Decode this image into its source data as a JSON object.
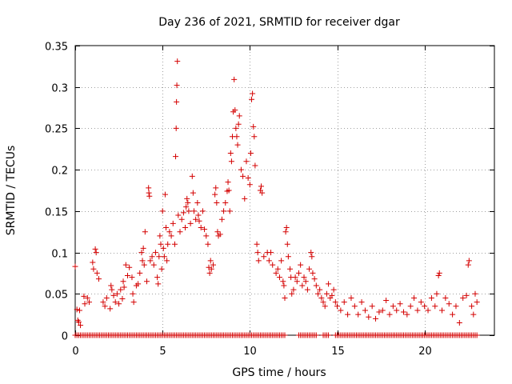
{
  "chart_data": {
    "type": "scatter",
    "title": "Day 236 of 2021, SRMTID for receiver dgar",
    "xlabel": "GPS time / hours",
    "ylabel": "SRMTID / TECUs",
    "xlim": [
      0,
      24
    ],
    "ylim": [
      0,
      0.35
    ],
    "x_ticks": [
      0,
      5,
      10,
      15,
      20
    ],
    "x_tick_labels": [
      "0",
      "5",
      "10",
      "15",
      "20"
    ],
    "y_ticks": [
      0,
      0.05,
      0.1,
      0.15,
      0.2,
      0.25,
      0.3,
      0.35
    ],
    "y_tick_labels": [
      "0",
      "0.05",
      "0.1",
      "0.15",
      "0.2",
      "0.25",
      "0.3",
      "0.35"
    ],
    "grid": true,
    "marker": "+",
    "series": [
      {
        "name": "SRMTID",
        "color": "#d40000",
        "points": [
          [
            0.0,
            0.083
          ],
          [
            0.1,
            0.031
          ],
          [
            0.15,
            0.018
          ],
          [
            0.2,
            0.016
          ],
          [
            0.25,
            0.03
          ],
          [
            0.3,
            0.012
          ],
          [
            0.5,
            0.047
          ],
          [
            0.55,
            0.038
          ],
          [
            0.7,
            0.045
          ],
          [
            0.8,
            0.04
          ],
          [
            1.0,
            0.088
          ],
          [
            1.05,
            0.08
          ],
          [
            1.15,
            0.104
          ],
          [
            1.2,
            0.1
          ],
          [
            1.25,
            0.075
          ],
          [
            1.35,
            0.068
          ],
          [
            1.6,
            0.04
          ],
          [
            1.7,
            0.035
          ],
          [
            1.8,
            0.045
          ],
          [
            2.0,
            0.032
          ],
          [
            2.05,
            0.06
          ],
          [
            2.1,
            0.055
          ],
          [
            2.2,
            0.048
          ],
          [
            2.3,
            0.04
          ],
          [
            2.4,
            0.05
          ],
          [
            2.5,
            0.038
          ],
          [
            2.6,
            0.055
          ],
          [
            2.7,
            0.044
          ],
          [
            2.75,
            0.065
          ],
          [
            2.8,
            0.058
          ],
          [
            2.9,
            0.085
          ],
          [
            3.0,
            0.072
          ],
          [
            3.1,
            0.082
          ],
          [
            3.25,
            0.07
          ],
          [
            3.3,
            0.05
          ],
          [
            3.35,
            0.04
          ],
          [
            3.5,
            0.06
          ],
          [
            3.6,
            0.062
          ],
          [
            3.7,
            0.075
          ],
          [
            3.8,
            0.1
          ],
          [
            3.85,
            0.09
          ],
          [
            3.9,
            0.105
          ],
          [
            3.95,
            0.085
          ],
          [
            4.0,
            0.125
          ],
          [
            4.1,
            0.065
          ],
          [
            4.2,
            0.178
          ],
          [
            4.22,
            0.172
          ],
          [
            4.25,
            0.168
          ],
          [
            4.3,
            0.09
          ],
          [
            4.4,
            0.095
          ],
          [
            4.5,
            0.085
          ],
          [
            4.6,
            0.1
          ],
          [
            4.7,
            0.07
          ],
          [
            4.75,
            0.062
          ],
          [
            4.8,
            0.095
          ],
          [
            4.85,
            0.12
          ],
          [
            4.9,
            0.11
          ],
          [
            4.95,
            0.08
          ],
          [
            5.0,
            0.15
          ],
          [
            5.05,
            0.105
          ],
          [
            5.1,
            0.095
          ],
          [
            5.15,
            0.17
          ],
          [
            5.2,
            0.13
          ],
          [
            5.25,
            0.09
          ],
          [
            5.3,
            0.11
          ],
          [
            5.4,
            0.125
          ],
          [
            5.5,
            0.12
          ],
          [
            5.6,
            0.135
          ],
          [
            5.7,
            0.11
          ],
          [
            5.75,
            0.216
          ],
          [
            5.78,
            0.25
          ],
          [
            5.8,
            0.282
          ],
          [
            5.82,
            0.302
          ],
          [
            5.85,
            0.331
          ],
          [
            5.9,
            0.145
          ],
          [
            6.0,
            0.125
          ],
          [
            6.1,
            0.14
          ],
          [
            6.2,
            0.148
          ],
          [
            6.3,
            0.13
          ],
          [
            6.35,
            0.155
          ],
          [
            6.4,
            0.165
          ],
          [
            6.45,
            0.16
          ],
          [
            6.5,
            0.15
          ],
          [
            6.6,
            0.135
          ],
          [
            6.7,
            0.192
          ],
          [
            6.75,
            0.172
          ],
          [
            6.8,
            0.15
          ],
          [
            6.9,
            0.14
          ],
          [
            7.0,
            0.16
          ],
          [
            7.05,
            0.145
          ],
          [
            7.1,
            0.138
          ],
          [
            7.2,
            0.13
          ],
          [
            7.3,
            0.15
          ],
          [
            7.4,
            0.128
          ],
          [
            7.5,
            0.12
          ],
          [
            7.6,
            0.11
          ],
          [
            7.65,
            0.082
          ],
          [
            7.7,
            0.075
          ],
          [
            7.75,
            0.09
          ],
          [
            7.8,
            0.08
          ],
          [
            7.9,
            0.085
          ],
          [
            8.0,
            0.17
          ],
          [
            8.05,
            0.178
          ],
          [
            8.1,
            0.16
          ],
          [
            8.15,
            0.125
          ],
          [
            8.2,
            0.12
          ],
          [
            8.3,
            0.122
          ],
          [
            8.4,
            0.14
          ],
          [
            8.5,
            0.15
          ],
          [
            8.6,
            0.16
          ],
          [
            8.7,
            0.174
          ],
          [
            8.75,
            0.185
          ],
          [
            8.8,
            0.175
          ],
          [
            8.85,
            0.15
          ],
          [
            8.9,
            0.22
          ],
          [
            8.95,
            0.21
          ],
          [
            9.0,
            0.24
          ],
          [
            9.05,
            0.27
          ],
          [
            9.1,
            0.309
          ],
          [
            9.15,
            0.272
          ],
          [
            9.2,
            0.25
          ],
          [
            9.25,
            0.24
          ],
          [
            9.3,
            0.23
          ],
          [
            9.35,
            0.255
          ],
          [
            9.4,
            0.265
          ],
          [
            9.5,
            0.2
          ],
          [
            9.6,
            0.192
          ],
          [
            9.7,
            0.165
          ],
          [
            9.8,
            0.21
          ],
          [
            9.9,
            0.19
          ],
          [
            10.0,
            0.182
          ],
          [
            10.05,
            0.22
          ],
          [
            10.1,
            0.285
          ],
          [
            10.15,
            0.292
          ],
          [
            10.2,
            0.252
          ],
          [
            10.25,
            0.24
          ],
          [
            10.3,
            0.205
          ],
          [
            10.4,
            0.11
          ],
          [
            10.45,
            0.1
          ],
          [
            10.5,
            0.09
          ],
          [
            10.6,
            0.175
          ],
          [
            10.65,
            0.18
          ],
          [
            10.7,
            0.172
          ],
          [
            10.8,
            0.095
          ],
          [
            11.0,
            0.1
          ],
          [
            11.1,
            0.09
          ],
          [
            11.2,
            0.1
          ],
          [
            11.3,
            0.085
          ],
          [
            11.5,
            0.075
          ],
          [
            11.6,
            0.08
          ],
          [
            11.7,
            0.07
          ],
          [
            11.8,
            0.09
          ],
          [
            11.9,
            0.065
          ],
          [
            11.95,
            0.06
          ],
          [
            12.0,
            0.045
          ],
          [
            12.05,
            0.125
          ],
          [
            12.1,
            0.13
          ],
          [
            12.15,
            0.11
          ],
          [
            12.2,
            0.095
          ],
          [
            12.3,
            0.08
          ],
          [
            12.35,
            0.07
          ],
          [
            12.4,
            0.05
          ],
          [
            12.5,
            0.055
          ],
          [
            12.6,
            0.07
          ],
          [
            12.7,
            0.065
          ],
          [
            12.8,
            0.075
          ],
          [
            12.9,
            0.085
          ],
          [
            13.0,
            0.06
          ],
          [
            13.1,
            0.07
          ],
          [
            13.2,
            0.065
          ],
          [
            13.3,
            0.055
          ],
          [
            13.4,
            0.08
          ],
          [
            13.5,
            0.1
          ],
          [
            13.55,
            0.095
          ],
          [
            13.6,
            0.075
          ],
          [
            13.7,
            0.068
          ],
          [
            13.8,
            0.06
          ],
          [
            13.9,
            0.05
          ],
          [
            14.0,
            0.055
          ],
          [
            14.1,
            0.045
          ],
          [
            14.2,
            0.04
          ],
          [
            14.3,
            0.035
          ],
          [
            14.4,
            0.05
          ],
          [
            14.5,
            0.062
          ],
          [
            14.6,
            0.045
          ],
          [
            14.7,
            0.048
          ],
          [
            14.8,
            0.055
          ],
          [
            14.9,
            0.04
          ],
          [
            15.0,
            0.035
          ],
          [
            15.2,
            0.03
          ],
          [
            15.4,
            0.04
          ],
          [
            15.6,
            0.025
          ],
          [
            15.8,
            0.045
          ],
          [
            16.0,
            0.035
          ],
          [
            16.2,
            0.025
          ],
          [
            16.4,
            0.04
          ],
          [
            16.6,
            0.03
          ],
          [
            16.8,
            0.022
          ],
          [
            17.0,
            0.035
          ],
          [
            17.2,
            0.02
          ],
          [
            17.4,
            0.028
          ],
          [
            17.6,
            0.03
          ],
          [
            17.8,
            0.042
          ],
          [
            18.0,
            0.025
          ],
          [
            18.2,
            0.035
          ],
          [
            18.4,
            0.03
          ],
          [
            18.6,
            0.038
          ],
          [
            18.8,
            0.028
          ],
          [
            19.0,
            0.025
          ],
          [
            19.2,
            0.035
          ],
          [
            19.4,
            0.045
          ],
          [
            19.6,
            0.03
          ],
          [
            19.8,
            0.04
          ],
          [
            20.0,
            0.035
          ],
          [
            20.2,
            0.03
          ],
          [
            20.4,
            0.045
          ],
          [
            20.6,
            0.035
          ],
          [
            20.7,
            0.05
          ],
          [
            20.8,
            0.072
          ],
          [
            20.85,
            0.075
          ],
          [
            21.0,
            0.03
          ],
          [
            21.2,
            0.045
          ],
          [
            21.4,
            0.038
          ],
          [
            21.6,
            0.025
          ],
          [
            21.8,
            0.035
          ],
          [
            22.0,
            0.015
          ],
          [
            22.2,
            0.045
          ],
          [
            22.4,
            0.048
          ],
          [
            22.5,
            0.085
          ],
          [
            22.55,
            0.09
          ],
          [
            22.7,
            0.035
          ],
          [
            22.8,
            0.025
          ],
          [
            22.9,
            0.05
          ],
          [
            23.0,
            0.04
          ]
        ],
        "zero_points": [
          0.0,
          0.1,
          0.2,
          0.3,
          0.4,
          0.5,
          0.6,
          0.7,
          0.8,
          0.9,
          1.0,
          1.1,
          1.2,
          1.3,
          1.4,
          1.5,
          1.6,
          1.7,
          1.8,
          1.9,
          2.0,
          2.1,
          2.2,
          2.3,
          2.4,
          2.5,
          2.6,
          2.7,
          2.8,
          2.9,
          3.0,
          3.1,
          3.2,
          3.3,
          3.4,
          3.5,
          3.6,
          3.7,
          3.8,
          3.9,
          4.0,
          4.1,
          4.2,
          4.3,
          4.4,
          4.5,
          4.6,
          4.7,
          4.8,
          4.9,
          5.0,
          5.1,
          5.2,
          5.3,
          5.4,
          5.5,
          5.6,
          5.7,
          5.8,
          5.9,
          6.0,
          6.1,
          6.2,
          6.3,
          6.4,
          6.5,
          6.6,
          6.7,
          6.8,
          6.9,
          7.0,
          7.1,
          7.2,
          7.3,
          7.4,
          7.5,
          7.6,
          7.7,
          7.8,
          7.9,
          8.0,
          8.1,
          8.2,
          8.3,
          8.4,
          8.5,
          8.6,
          8.7,
          8.8,
          8.9,
          9.0,
          9.1,
          9.2,
          9.3,
          9.4,
          9.5,
          9.6,
          9.7,
          9.8,
          9.9,
          10.0,
          10.1,
          10.2,
          10.3,
          10.4,
          10.5,
          10.6,
          10.7,
          10.8,
          10.9,
          11.0,
          11.1,
          11.2,
          11.3,
          11.4,
          11.5,
          11.6,
          11.7,
          11.8,
          11.9,
          12.0,
          12.8,
          12.9,
          13.0,
          13.1,
          13.2,
          13.3,
          13.4,
          13.5,
          13.6,
          13.7,
          13.8,
          14.2,
          14.3,
          14.4,
          14.5,
          14.9,
          15.0,
          15.1,
          15.2,
          15.3,
          15.4,
          15.5,
          15.6,
          15.7,
          15.8,
          15.9,
          16.0,
          16.1,
          16.2,
          16.3,
          16.4,
          16.5,
          16.6,
          16.7,
          16.8,
          16.9,
          17.0,
          17.1,
          17.2,
          17.3,
          17.4,
          17.5,
          17.6,
          17.7,
          17.8,
          17.9,
          18.0,
          18.1,
          18.2,
          18.3,
          18.4,
          18.5,
          18.6,
          18.7,
          18.8,
          18.9,
          19.0,
          19.1,
          19.2,
          19.3,
          19.4,
          19.5,
          19.6,
          19.7,
          19.8,
          19.9,
          20.0,
          20.1,
          20.2,
          20.3,
          20.4,
          20.5,
          20.6,
          20.7,
          20.8,
          20.9,
          21.0,
          21.1,
          21.2,
          21.3,
          21.4,
          21.5,
          21.6,
          21.7,
          21.8,
          21.9,
          22.0,
          22.1,
          22.2,
          22.3,
          22.4,
          22.5,
          22.6,
          22.7,
          22.8,
          22.9,
          23.0
        ]
      }
    ]
  }
}
